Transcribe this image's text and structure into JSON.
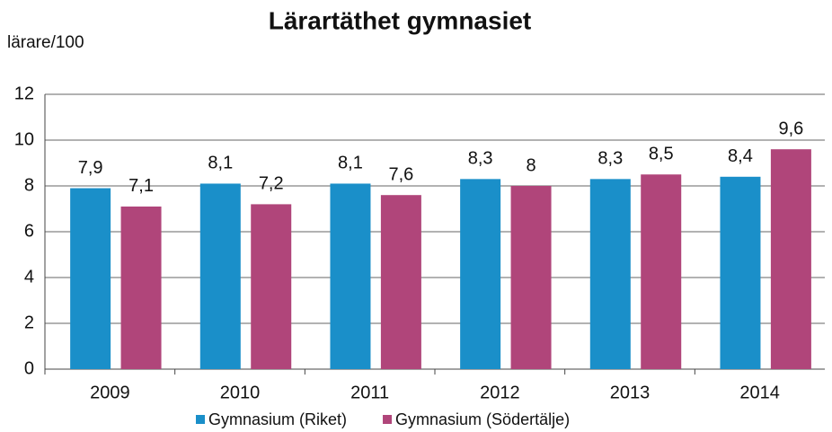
{
  "chart_data": {
    "type": "bar",
    "title": "Lärartäthet gymnasiet",
    "y_label": "lärare/100",
    "categories": [
      "2009",
      "2010",
      "2011",
      "2012",
      "2013",
      "2014"
    ],
    "series": [
      {
        "name": "Gymnasium (Riket)",
        "color": "#1a8fc9",
        "values": [
          7.9,
          8.1,
          8.1,
          8.3,
          8.3,
          8.4
        ],
        "value_labels": [
          "7,9",
          "8,1",
          "8,1",
          "8,3",
          "8,3",
          "8,4"
        ]
      },
      {
        "name": "Gymnasium (Södertälje)",
        "color": "#b0457a",
        "values": [
          7.1,
          7.2,
          7.6,
          8,
          8.5,
          9.6
        ],
        "value_labels": [
          "7,1",
          "7,2",
          "7,6",
          "8",
          "8,5",
          "9,6"
        ]
      }
    ],
    "ylim": [
      0,
      12
    ],
    "yticks": [
      0,
      2,
      4,
      6,
      8,
      10,
      12
    ],
    "grid": true
  }
}
